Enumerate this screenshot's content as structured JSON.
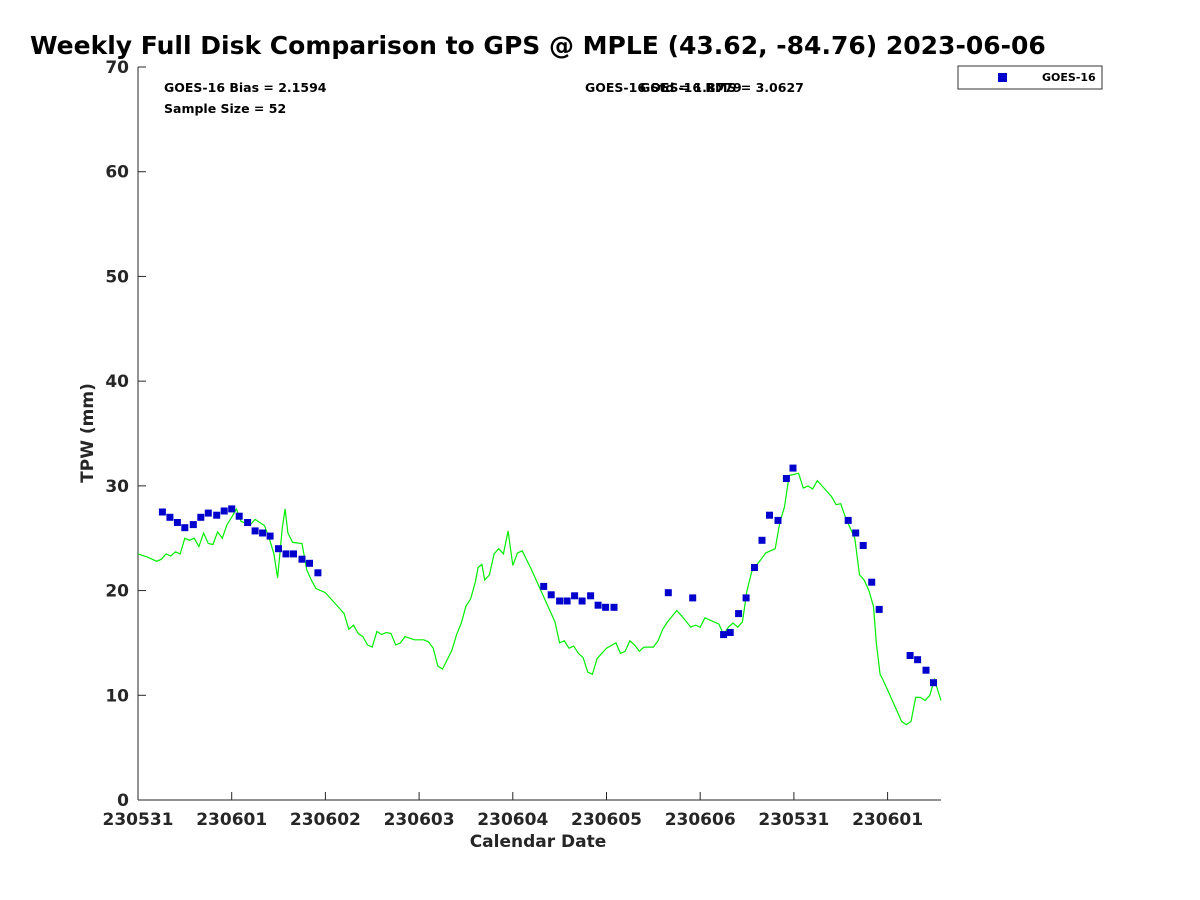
{
  "chart_data": {
    "type": "scatter",
    "title": "Weekly Full Disk Comparison to GPS @ MPLE (43.62, -84.76) 2023-06-06",
    "xlabel": "Calendar Date",
    "ylabel": "TPW (mm)",
    "xlim": [
      0,
      8.57
    ],
    "ylim": [
      0,
      70
    ],
    "x_ticks": [
      {
        "value": 0,
        "label": "230531"
      },
      {
        "value": 1,
        "label": "230601"
      },
      {
        "value": 2,
        "label": "230602"
      },
      {
        "value": 3,
        "label": "230603"
      },
      {
        "value": 4,
        "label": "230604"
      },
      {
        "value": 5,
        "label": "230605"
      },
      {
        "value": 6,
        "label": "230606"
      },
      {
        "value": 7,
        "label": "230531"
      },
      {
        "value": 8,
        "label": "230601"
      }
    ],
    "y_ticks": [
      {
        "value": 0,
        "label": "0"
      },
      {
        "value": 10,
        "label": "10"
      },
      {
        "value": 20,
        "label": "20"
      },
      {
        "value": 30,
        "label": "30"
      },
      {
        "value": 40,
        "label": "40"
      },
      {
        "value": 50,
        "label": "50"
      },
      {
        "value": 60,
        "label": "60"
      },
      {
        "value": 70,
        "label": "70"
      }
    ],
    "annotations": {
      "bias": "GOES-16 Bias = 2.1594",
      "sample": "Sample Size = 52",
      "std": "GOES-16 Std = 1.8779",
      "rms": "GOES-16 RMS = 3.0627"
    },
    "legend": {
      "position": "top-right",
      "entries": [
        {
          "name": "GOES-16",
          "color": "#0000cc",
          "marker": "square"
        }
      ]
    },
    "series": [
      {
        "name": "GOES-16",
        "kind": "markers",
        "color": "#0000cc",
        "points": [
          [
            0.26,
            27.5
          ],
          [
            0.34,
            27.0
          ],
          [
            0.42,
            26.5
          ],
          [
            0.5,
            26.0
          ],
          [
            0.59,
            26.3
          ],
          [
            0.67,
            27.0
          ],
          [
            0.75,
            27.4
          ],
          [
            0.84,
            27.2
          ],
          [
            0.92,
            27.6
          ],
          [
            1.0,
            27.8
          ],
          [
            1.08,
            27.1
          ],
          [
            1.17,
            26.5
          ],
          [
            1.25,
            25.7
          ],
          [
            1.33,
            25.5
          ],
          [
            1.41,
            25.2
          ],
          [
            1.5,
            24.0
          ],
          [
            1.58,
            23.5
          ],
          [
            1.66,
            23.5
          ],
          [
            1.75,
            23.0
          ],
          [
            1.83,
            22.6
          ],
          [
            1.92,
            21.7
          ],
          [
            4.33,
            20.4
          ],
          [
            4.41,
            19.6
          ],
          [
            4.5,
            19.0
          ],
          [
            4.58,
            19.0
          ],
          [
            4.66,
            19.5
          ],
          [
            4.74,
            19.0
          ],
          [
            4.83,
            19.5
          ],
          [
            4.91,
            18.6
          ],
          [
            4.99,
            18.4
          ],
          [
            5.08,
            18.4
          ],
          [
            5.66,
            19.8
          ],
          [
            5.92,
            19.3
          ],
          [
            6.25,
            15.8
          ],
          [
            6.32,
            16.0
          ],
          [
            6.41,
            17.8
          ],
          [
            6.49,
            19.3
          ],
          [
            6.58,
            22.2
          ],
          [
            6.66,
            24.8
          ],
          [
            6.74,
            27.2
          ],
          [
            6.83,
            26.7
          ],
          [
            6.92,
            30.7
          ],
          [
            6.99,
            31.7
          ],
          [
            7.58,
            26.7
          ],
          [
            7.66,
            25.5
          ],
          [
            7.74,
            24.3
          ],
          [
            7.83,
            20.8
          ],
          [
            7.91,
            18.2
          ],
          [
            8.24,
            13.8
          ],
          [
            8.32,
            13.4
          ],
          [
            8.41,
            12.4
          ],
          [
            8.49,
            11.2
          ]
        ]
      },
      {
        "name": "GPS",
        "kind": "line",
        "color": "#00ee00",
        "points": [
          [
            0.0,
            23.5
          ],
          [
            0.1,
            23.2
          ],
          [
            0.2,
            22.8
          ],
          [
            0.25,
            23.0
          ],
          [
            0.3,
            23.5
          ],
          [
            0.35,
            23.3
          ],
          [
            0.4,
            23.7
          ],
          [
            0.45,
            23.5
          ],
          [
            0.5,
            25.0
          ],
          [
            0.55,
            24.8
          ],
          [
            0.6,
            25.0
          ],
          [
            0.65,
            24.2
          ],
          [
            0.7,
            25.5
          ],
          [
            0.75,
            24.5
          ],
          [
            0.8,
            24.4
          ],
          [
            0.85,
            25.6
          ],
          [
            0.9,
            25.0
          ],
          [
            0.95,
            26.3
          ],
          [
            1.0,
            27.0
          ],
          [
            1.05,
            27.8
          ],
          [
            1.1,
            26.6
          ],
          [
            1.2,
            26.3
          ],
          [
            1.25,
            26.8
          ],
          [
            1.35,
            26.2
          ],
          [
            1.4,
            25.0
          ],
          [
            1.45,
            23.5
          ],
          [
            1.49,
            21.2
          ],
          [
            1.54,
            26.0
          ],
          [
            1.57,
            27.8
          ],
          [
            1.6,
            25.5
          ],
          [
            1.65,
            24.6
          ],
          [
            1.75,
            24.5
          ],
          [
            1.8,
            22.0
          ],
          [
            1.85,
            21.0
          ],
          [
            1.9,
            20.2
          ],
          [
            2.0,
            19.8
          ],
          [
            2.1,
            18.8
          ],
          [
            2.2,
            17.8
          ],
          [
            2.25,
            16.3
          ],
          [
            2.3,
            16.7
          ],
          [
            2.35,
            15.9
          ],
          [
            2.4,
            15.6
          ],
          [
            2.45,
            14.8
          ],
          [
            2.5,
            14.6
          ],
          [
            2.55,
            16.1
          ],
          [
            2.6,
            15.8
          ],
          [
            2.65,
            16.0
          ],
          [
            2.7,
            15.9
          ],
          [
            2.75,
            14.8
          ],
          [
            2.8,
            15.0
          ],
          [
            2.85,
            15.6
          ],
          [
            2.95,
            15.3
          ],
          [
            3.05,
            15.3
          ],
          [
            3.1,
            15.1
          ],
          [
            3.15,
            14.5
          ],
          [
            3.2,
            12.8
          ],
          [
            3.25,
            12.5
          ],
          [
            3.35,
            14.3
          ],
          [
            3.4,
            15.8
          ],
          [
            3.45,
            16.9
          ],
          [
            3.5,
            18.5
          ],
          [
            3.55,
            19.2
          ],
          [
            3.6,
            20.8
          ],
          [
            3.63,
            22.2
          ],
          [
            3.67,
            22.5
          ],
          [
            3.7,
            21.0
          ],
          [
            3.75,
            21.5
          ],
          [
            3.8,
            23.5
          ],
          [
            3.85,
            24.0
          ],
          [
            3.9,
            23.5
          ],
          [
            3.95,
            25.7
          ],
          [
            4.0,
            22.4
          ],
          [
            4.05,
            23.6
          ],
          [
            4.1,
            23.8
          ],
          [
            4.2,
            22.0
          ],
          [
            4.3,
            20.0
          ],
          [
            4.4,
            18.0
          ],
          [
            4.45,
            17.0
          ],
          [
            4.5,
            15.0
          ],
          [
            4.55,
            15.2
          ],
          [
            4.6,
            14.5
          ],
          [
            4.65,
            14.7
          ],
          [
            4.7,
            14.0
          ],
          [
            4.75,
            13.6
          ],
          [
            4.8,
            12.2
          ],
          [
            4.85,
            12.0
          ],
          [
            4.9,
            13.5
          ],
          [
            5.0,
            14.5
          ],
          [
            5.1,
            15.0
          ],
          [
            5.15,
            14.0
          ],
          [
            5.2,
            14.2
          ],
          [
            5.25,
            15.2
          ],
          [
            5.3,
            14.8
          ],
          [
            5.35,
            14.2
          ],
          [
            5.4,
            14.6
          ],
          [
            5.5,
            14.6
          ],
          [
            5.55,
            15.2
          ],
          [
            5.6,
            16.3
          ],
          [
            5.65,
            17.0
          ],
          [
            5.75,
            18.1
          ],
          [
            5.8,
            17.6
          ],
          [
            5.9,
            16.5
          ],
          [
            5.95,
            16.7
          ],
          [
            6.0,
            16.5
          ],
          [
            6.05,
            17.4
          ],
          [
            6.15,
            17.0
          ],
          [
            6.2,
            16.8
          ],
          [
            6.25,
            15.8
          ],
          [
            6.3,
            16.5
          ],
          [
            6.35,
            16.9
          ],
          [
            6.4,
            16.5
          ],
          [
            6.45,
            17.0
          ],
          [
            6.5,
            20.0
          ],
          [
            6.55,
            21.8
          ],
          [
            6.6,
            22.4
          ],
          [
            6.65,
            23.0
          ],
          [
            6.7,
            23.6
          ],
          [
            6.8,
            24.0
          ],
          [
            6.85,
            26.5
          ],
          [
            6.9,
            28.0
          ],
          [
            6.95,
            31.0
          ],
          [
            7.05,
            31.2
          ],
          [
            7.1,
            29.8
          ],
          [
            7.15,
            30.0
          ],
          [
            7.2,
            29.7
          ],
          [
            7.25,
            30.5
          ],
          [
            7.3,
            30.0
          ],
          [
            7.35,
            29.5
          ],
          [
            7.4,
            29.0
          ],
          [
            7.45,
            28.2
          ],
          [
            7.5,
            28.3
          ],
          [
            7.55,
            27.0
          ],
          [
            7.6,
            26.0
          ],
          [
            7.65,
            25.0
          ],
          [
            7.7,
            21.5
          ],
          [
            7.75,
            21.0
          ],
          [
            7.8,
            20.0
          ],
          [
            7.85,
            18.5
          ],
          [
            7.88,
            15.0
          ],
          [
            7.92,
            12.0
          ],
          [
            7.95,
            11.5
          ],
          [
            8.0,
            10.5
          ],
          [
            8.05,
            9.5
          ],
          [
            8.1,
            8.5
          ],
          [
            8.15,
            7.5
          ],
          [
            8.2,
            7.2
          ],
          [
            8.25,
            7.5
          ],
          [
            8.3,
            9.8
          ],
          [
            8.35,
            9.8
          ],
          [
            8.4,
            9.5
          ],
          [
            8.45,
            10.0
          ],
          [
            8.5,
            11.5
          ],
          [
            8.57,
            9.5
          ]
        ]
      }
    ]
  }
}
